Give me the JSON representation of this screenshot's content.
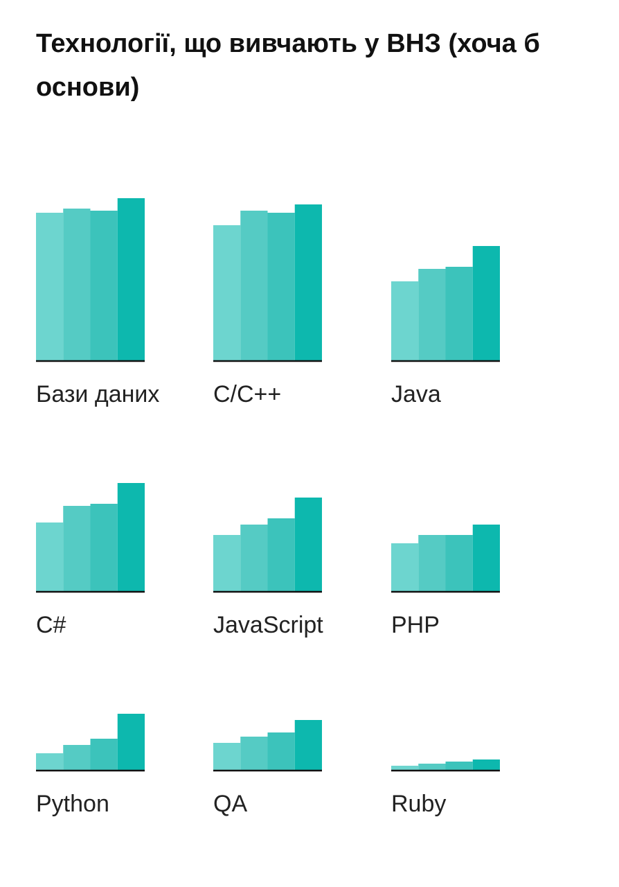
{
  "chart_data": {
    "type": "bar",
    "title": "Технології, що вивчають у ВНЗ (хоча б основи)",
    "colors": [
      "#6dd5cf",
      "#55cbc4",
      "#3cc3bb",
      "#0db8ae"
    ],
    "ylim": [
      0,
      100
    ],
    "panels": [
      {
        "label": "Бази даних",
        "values": [
          71,
          73,
          72,
          78
        ]
      },
      {
        "label": "C/C++",
        "values": [
          65,
          72,
          71,
          75
        ]
      },
      {
        "label": "Java",
        "values": [
          38,
          44,
          45,
          55
        ]
      },
      {
        "label": "C#",
        "values": [
          33,
          41,
          42,
          52
        ]
      },
      {
        "label": "JavaScript",
        "values": [
          27,
          32,
          35,
          45
        ]
      },
      {
        "label": "PHP",
        "values": [
          23,
          27,
          27,
          32
        ]
      },
      {
        "label": "Python",
        "values": [
          8,
          12,
          15,
          27
        ]
      },
      {
        "label": "QA",
        "values": [
          13,
          16,
          18,
          24
        ]
      },
      {
        "label": "Ruby",
        "values": [
          2,
          3,
          4,
          5
        ]
      }
    ]
  }
}
